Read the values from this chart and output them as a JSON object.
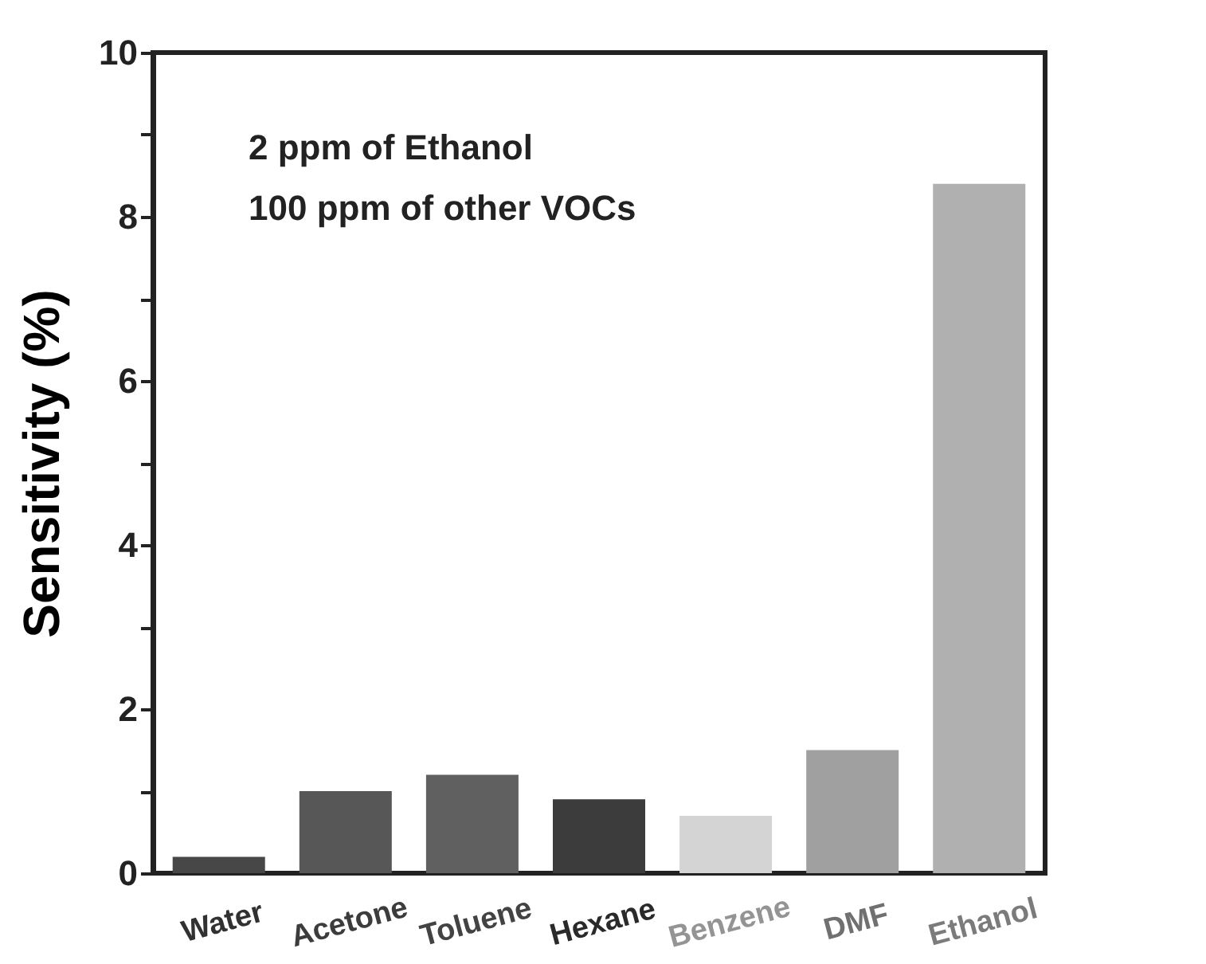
{
  "chart_data": {
    "type": "bar",
    "ylabel": "Sensitivity (%)",
    "categories": [
      "Water",
      "Acetone",
      "Toluene",
      "Hexane",
      "Benzene",
      "DMF",
      "Ethanol"
    ],
    "values": [
      0.2,
      1.0,
      1.2,
      0.9,
      0.7,
      1.5,
      8.4
    ],
    "colors": [
      "#474747",
      "#575757",
      "#606060",
      "#3c3c3c",
      "#d4d4d4",
      "#a0a0a0",
      "#b0b0b0"
    ],
    "ylim": [
      0,
      10
    ],
    "yticks": [
      0,
      {
        "value": 1,
        "label": null
      },
      2,
      {
        "value": 3,
        "label": null
      },
      4,
      {
        "value": 5,
        "label": null
      },
      6,
      {
        "value": 7,
        "label": null
      },
      8,
      {
        "value": 9,
        "label": null
      },
      10
    ],
    "annotations": [
      "2 ppm of Ethanol",
      "100 ppm of other VOCs"
    ],
    "grid": false
  }
}
